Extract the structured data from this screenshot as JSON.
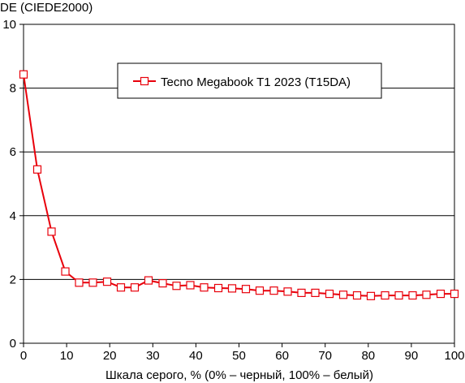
{
  "chart_data": {
    "type": "line",
    "ylabel": "DE (CIEDE2000)",
    "xlabel": "Шкала серого, % (0% – черный, 100% – белый)",
    "xlim": [
      0,
      100
    ],
    "ylim": [
      0,
      10
    ],
    "xticks": [
      0,
      10,
      20,
      30,
      40,
      50,
      60,
      70,
      80,
      90,
      100
    ],
    "yticks": [
      0,
      2,
      4,
      6,
      8,
      10
    ],
    "grid": {
      "horizontal": true,
      "vertical": false
    },
    "legend": {
      "position": "top-center"
    },
    "series": [
      {
        "name": "Tecno Megabook T1 2023 (T15DA)",
        "color": "#e8000b",
        "marker": "square-open",
        "x": [
          0,
          3.2,
          6.5,
          9.7,
          12.9,
          16.1,
          19.4,
          22.6,
          25.8,
          29.0,
          32.3,
          35.5,
          38.7,
          41.9,
          45.2,
          48.4,
          51.6,
          54.8,
          58.1,
          61.3,
          64.5,
          67.7,
          71.0,
          74.2,
          77.4,
          80.6,
          83.9,
          87.1,
          90.3,
          93.5,
          96.8,
          100
        ],
        "y": [
          8.43,
          5.45,
          3.5,
          2.25,
          1.9,
          1.9,
          1.93,
          1.75,
          1.75,
          1.97,
          1.88,
          1.8,
          1.82,
          1.75,
          1.73,
          1.72,
          1.7,
          1.65,
          1.65,
          1.62,
          1.58,
          1.58,
          1.55,
          1.52,
          1.5,
          1.48,
          1.5,
          1.5,
          1.5,
          1.52,
          1.55,
          1.55
        ]
      }
    ]
  }
}
